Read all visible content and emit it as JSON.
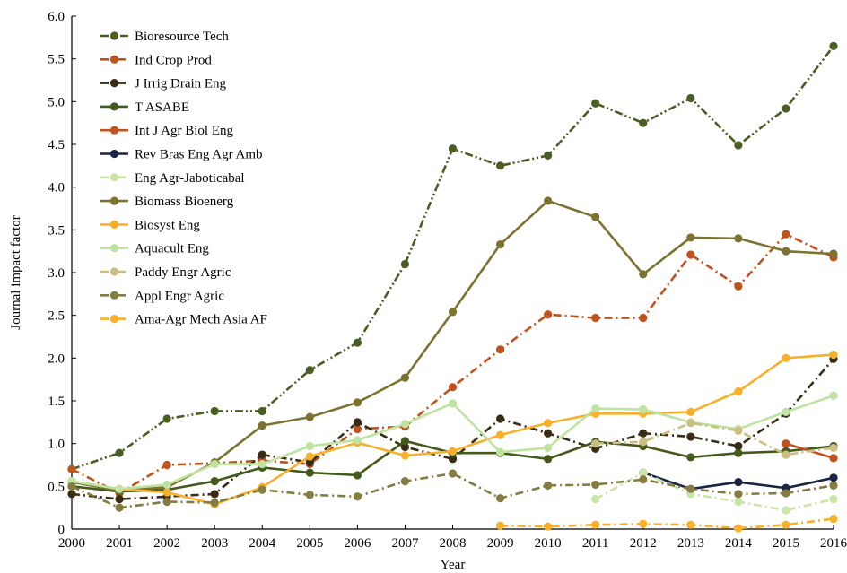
{
  "chart_data": {
    "type": "line",
    "xlabel": "Year",
    "ylabel": "Journal impact factor",
    "xlim": [
      2000,
      2016
    ],
    "ylim": [
      0,
      6.0
    ],
    "xticks": [
      "2000",
      "2001",
      "2002",
      "2003",
      "2004",
      "2005",
      "2006",
      "2007",
      "2008",
      "2009",
      "2010",
      "2011",
      "2012",
      "2013",
      "2014",
      "2015",
      "2016"
    ],
    "yticks": [
      "0",
      "0.5",
      "1.0",
      "1.5",
      "2.0",
      "2.5",
      "3.0",
      "3.5",
      "4.0",
      "4.5",
      "5.0",
      "5.5",
      "6.0"
    ],
    "legend_position": "top-left",
    "grid": false,
    "series": [
      {
        "name": "Bioresource Tech",
        "color": "#4a5e23",
        "dash": "dashdotdot",
        "points": [
          [
            2000,
            0.7
          ],
          [
            2001,
            0.89
          ],
          [
            2002,
            1.29
          ],
          [
            2003,
            1.38
          ],
          [
            2004,
            1.38
          ],
          [
            2005,
            1.86
          ],
          [
            2006,
            2.18
          ],
          [
            2007,
            3.1
          ],
          [
            2008,
            4.45
          ],
          [
            2009,
            4.25
          ],
          [
            2010,
            4.37
          ],
          [
            2011,
            4.98
          ],
          [
            2012,
            4.75
          ],
          [
            2013,
            5.04
          ],
          [
            2014,
            4.49
          ],
          [
            2015,
            4.92
          ],
          [
            2016,
            5.65
          ]
        ]
      },
      {
        "name": "Ind Crop Prod",
        "color": "#c0521e",
        "dash": "dashdot",
        "points": [
          [
            2000,
            0.7
          ],
          [
            2001,
            0.42
          ],
          [
            2002,
            0.75
          ],
          [
            2003,
            0.77
          ],
          [
            2004,
            0.8
          ],
          [
            2005,
            0.76
          ],
          [
            2006,
            1.17
          ],
          [
            2007,
            1.2
          ],
          [
            2008,
            1.66
          ],
          [
            2009,
            2.1
          ],
          [
            2010,
            2.51
          ],
          [
            2011,
            2.47
          ],
          [
            2012,
            2.47
          ],
          [
            2013,
            3.21
          ],
          [
            2014,
            2.84
          ],
          [
            2015,
            3.45
          ],
          [
            2016,
            3.18
          ]
        ]
      },
      {
        "name": "J Irrig Drain Eng",
        "color": "#3b2c15",
        "dash": "dashdot",
        "points": [
          [
            2000,
            0.41
          ],
          [
            2001,
            0.35
          ],
          [
            2002,
            0.38
          ],
          [
            2003,
            0.41
          ],
          [
            2004,
            0.87
          ],
          [
            2005,
            0.78
          ],
          [
            2006,
            1.25
          ],
          [
            2007,
            0.96
          ],
          [
            2008,
            0.82
          ],
          [
            2009,
            1.29
          ],
          [
            2010,
            1.12
          ],
          [
            2011,
            0.94
          ],
          [
            2012,
            1.12
          ],
          [
            2013,
            1.08
          ],
          [
            2014,
            0.97
          ],
          [
            2015,
            1.35
          ],
          [
            2016,
            1.99
          ]
        ]
      },
      {
        "name": "T ASABE",
        "color": "#445a1c",
        "dash": "solid",
        "points": [
          [
            2000,
            0.5
          ],
          [
            2001,
            0.44
          ],
          [
            2002,
            0.46
          ],
          [
            2003,
            0.56
          ],
          [
            2004,
            0.72
          ],
          [
            2005,
            0.66
          ],
          [
            2006,
            0.63
          ],
          [
            2007,
            1.03
          ],
          [
            2008,
            0.89
          ],
          [
            2009,
            0.89
          ],
          [
            2010,
            0.82
          ],
          [
            2011,
            1.02
          ],
          [
            2012,
            0.97
          ],
          [
            2013,
            0.84
          ],
          [
            2014,
            0.89
          ],
          [
            2015,
            0.91
          ],
          [
            2016,
            0.97
          ]
        ]
      },
      {
        "name": "Int J Agr Biol Eng",
        "color": "#c0521e",
        "dash": "solid",
        "points": [
          [
            2015,
            1.0
          ],
          [
            2016,
            0.83
          ]
        ]
      },
      {
        "name": "Rev Bras Eng Agr Amb",
        "color": "#1c2444",
        "dash": "solid",
        "points": [
          [
            2012,
            0.66
          ],
          [
            2013,
            0.47
          ],
          [
            2014,
            0.55
          ],
          [
            2015,
            0.48
          ],
          [
            2016,
            0.6
          ]
        ]
      },
      {
        "name": "Eng Agr-Jaboticabal",
        "color": "#c9e6a6",
        "dash": "dashdot",
        "points": [
          [
            2011,
            0.35
          ],
          [
            2012,
            0.66
          ],
          [
            2013,
            0.41
          ],
          [
            2014,
            0.32
          ],
          [
            2015,
            0.22
          ],
          [
            2016,
            0.35
          ]
        ]
      },
      {
        "name": "Biomass Bioenerg",
        "color": "#7d7330",
        "dash": "solid",
        "points": [
          [
            2000,
            0.55
          ],
          [
            2001,
            0.45
          ],
          [
            2002,
            0.49
          ],
          [
            2003,
            0.78
          ],
          [
            2004,
            1.21
          ],
          [
            2005,
            1.31
          ],
          [
            2006,
            1.48
          ],
          [
            2007,
            1.77
          ],
          [
            2008,
            2.54
          ],
          [
            2009,
            3.33
          ],
          [
            2010,
            3.84
          ],
          [
            2011,
            3.65
          ],
          [
            2012,
            2.98
          ],
          [
            2013,
            3.41
          ],
          [
            2014,
            3.4
          ],
          [
            2015,
            3.25
          ],
          [
            2016,
            3.22
          ]
        ]
      },
      {
        "name": "Biosyst Eng",
        "color": "#f8b02a",
        "dash": "solid",
        "points": [
          [
            2000,
            0.56
          ],
          [
            2001,
            0.47
          ],
          [
            2002,
            0.43
          ],
          [
            2003,
            0.29
          ],
          [
            2004,
            0.49
          ],
          [
            2005,
            0.85
          ],
          [
            2006,
            1.01
          ],
          [
            2007,
            0.86
          ],
          [
            2008,
            0.91
          ],
          [
            2009,
            1.1
          ],
          [
            2010,
            1.24
          ],
          [
            2011,
            1.35
          ],
          [
            2012,
            1.35
          ],
          [
            2013,
            1.37
          ],
          [
            2014,
            1.61
          ],
          [
            2015,
            2.0
          ],
          [
            2016,
            2.04
          ]
        ]
      },
      {
        "name": "Aquacult Eng",
        "color": "#bfe3a0",
        "dash": "solid",
        "points": [
          [
            2000,
            0.56
          ],
          [
            2001,
            0.47
          ],
          [
            2002,
            0.52
          ],
          [
            2003,
            0.76
          ],
          [
            2004,
            0.76
          ],
          [
            2005,
            0.97
          ],
          [
            2006,
            1.04
          ],
          [
            2007,
            1.23
          ],
          [
            2008,
            1.47
          ],
          [
            2009,
            0.9
          ],
          [
            2010,
            0.95
          ],
          [
            2011,
            1.41
          ],
          [
            2012,
            1.4
          ],
          [
            2013,
            1.25
          ],
          [
            2014,
            1.17
          ],
          [
            2015,
            1.37
          ],
          [
            2016,
            1.56
          ]
        ]
      },
      {
        "name": "Paddy Engr Agric",
        "color": "#cbbf80",
        "dash": "dashdot",
        "points": [
          [
            2011,
            1.0
          ],
          [
            2012,
            1.02
          ],
          [
            2013,
            1.24
          ],
          [
            2014,
            1.15
          ],
          [
            2015,
            0.87
          ],
          [
            2016,
            0.95
          ]
        ]
      },
      {
        "name": "Appl Engr Agric",
        "color": "#857d40",
        "dash": "dashdot",
        "points": [
          [
            2000,
            0.5
          ],
          [
            2001,
            0.25
          ],
          [
            2002,
            0.32
          ],
          [
            2003,
            0.31
          ],
          [
            2004,
            0.46
          ],
          [
            2005,
            0.4
          ],
          [
            2006,
            0.38
          ],
          [
            2007,
            0.56
          ],
          [
            2008,
            0.65
          ],
          [
            2009,
            0.36
          ],
          [
            2010,
            0.51
          ],
          [
            2011,
            0.52
          ],
          [
            2012,
            0.58
          ],
          [
            2013,
            0.47
          ],
          [
            2014,
            0.41
          ],
          [
            2015,
            0.42
          ],
          [
            2016,
            0.51
          ]
        ]
      },
      {
        "name": "Ama-Agr Mech Asia AF",
        "color": "#f8b02a",
        "dash": "dashdot",
        "points": [
          [
            2009,
            0.04
          ],
          [
            2010,
            0.03
          ],
          [
            2011,
            0.05
          ],
          [
            2012,
            0.06
          ],
          [
            2013,
            0.05
          ],
          [
            2014,
            0.01
          ],
          [
            2015,
            0.05
          ],
          [
            2016,
            0.12
          ]
        ]
      }
    ]
  }
}
